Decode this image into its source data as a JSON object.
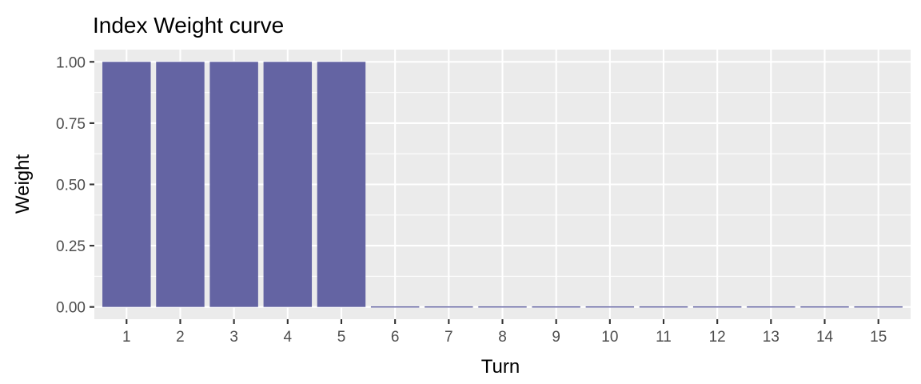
{
  "chart_data": {
    "type": "bar",
    "title": "Index Weight curve",
    "xlabel": "Turn",
    "ylabel": "Weight",
    "categories": [
      "1",
      "2",
      "3",
      "4",
      "5",
      "6",
      "7",
      "8",
      "9",
      "10",
      "11",
      "12",
      "13",
      "14",
      "15"
    ],
    "values": [
      1,
      1,
      1,
      1,
      1,
      0,
      0,
      0,
      0,
      0,
      0,
      0,
      0,
      0,
      0
    ],
    "ylim": [
      -0.05,
      1.05
    ],
    "yticks": [
      0,
      0.25,
      0.5,
      0.75,
      1
    ],
    "ytick_labels": [
      "0.00",
      "0.25",
      "0.50",
      "0.75",
      "1.00"
    ],
    "grid": true,
    "legend": "none",
    "colors": {
      "bar_fill": "#6464a3",
      "panel_background": "#ebebeb",
      "grid": "#ffffff",
      "tick_text": "#4d4d4d"
    }
  }
}
